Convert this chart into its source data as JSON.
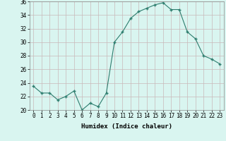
{
  "x": [
    0,
    1,
    2,
    3,
    4,
    5,
    6,
    7,
    8,
    9,
    10,
    11,
    12,
    13,
    14,
    15,
    16,
    17,
    18,
    19,
    20,
    21,
    22,
    23
  ],
  "y": [
    23.5,
    22.5,
    22.5,
    21.5,
    22.0,
    22.8,
    20.0,
    21.0,
    20.5,
    22.5,
    30.0,
    31.5,
    33.5,
    34.5,
    35.0,
    35.5,
    35.8,
    34.8,
    34.8,
    31.5,
    30.5,
    28.0,
    27.5,
    26.8
  ],
  "line_color": "#2d7d6e",
  "marker": "+",
  "marker_size": 3.5,
  "bg_color": "#d9f5f0",
  "grid_color": "#c9b8b8",
  "xlabel": "Humidex (Indice chaleur)",
  "xlim": [
    -0.5,
    23.5
  ],
  "ylim": [
    20,
    36
  ],
  "yticks": [
    20,
    22,
    24,
    26,
    28,
    30,
    32,
    34,
    36
  ],
  "xticks": [
    0,
    1,
    2,
    3,
    4,
    5,
    6,
    7,
    8,
    9,
    10,
    11,
    12,
    13,
    14,
    15,
    16,
    17,
    18,
    19,
    20,
    21,
    22,
    23
  ],
  "xtick_labels": [
    "0",
    "1",
    "2",
    "3",
    "4",
    "5",
    "6",
    "7",
    "8",
    "9",
    "10",
    "11",
    "12",
    "13",
    "14",
    "15",
    "16",
    "17",
    "18",
    "19",
    "20",
    "21",
    "22",
    "23"
  ],
  "label_fontsize": 6.5,
  "tick_fontsize": 5.5
}
